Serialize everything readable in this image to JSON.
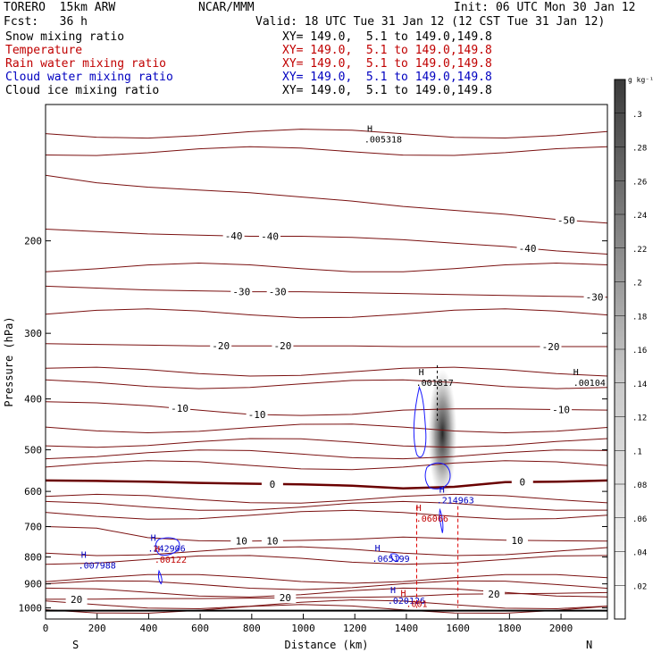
{
  "header": {
    "model": "TORERO  15km ARW",
    "center": "NCAR/MMM",
    "init": "Init: 06 UTC Mon 30 Jan 12",
    "fcst": "Fcst:   36 h",
    "valid": "Valid: 18 UTC Tue 31 Jan 12 (12 CST Tue 31 Jan 12)"
  },
  "fields": [
    {
      "name": "Snow mixing ratio",
      "xy": "XY= 149.0,  5.1 to 149.0,149.8",
      "color": "#000000"
    },
    {
      "name": "Temperature",
      "xy": "XY= 149.0,  5.1 to 149.0,149.8",
      "color": "#c00000"
    },
    {
      "name": "Rain water mixing ratio",
      "xy": "XY= 149.0,  5.1 to 149.0,149.8",
      "color": "#c00000"
    },
    {
      "name": "Cloud water mixing ratio",
      "xy": "XY= 149.0,  5.1 to 149.0,149.8",
      "color": "#0000c0"
    },
    {
      "name": "Cloud ice mixing ratio",
      "xy": "XY= 149.0,  5.1 to 149.0,149.8",
      "color": "#000000"
    }
  ],
  "chart_data": {
    "type": "contour cross-section",
    "xlabel": "Distance (km)",
    "ylabel": "Pressure (hPa)",
    "x_ticks": [
      0,
      200,
      400,
      600,
      800,
      1000,
      1200,
      1400,
      1600,
      1800,
      2000
    ],
    "xlim": [
      0,
      2180
    ],
    "y_ticks": [
      200,
      300,
      400,
      500,
      600,
      700,
      800,
      900,
      1000
    ],
    "ylim": [
      1050,
      110
    ],
    "y_scale": "log",
    "endpoints": {
      "left": "S",
      "right": "N"
    },
    "colorbar": {
      "unit": "g kg⁻¹",
      "ticks": [
        ".02",
        ".04",
        ".06",
        ".08",
        ".1",
        ".12",
        ".14",
        ".16",
        ".18",
        ".2",
        ".22",
        ".24",
        ".26",
        ".28",
        ".3"
      ],
      "range": [
        0,
        0.32
      ]
    },
    "temperature_contours": [
      {
        "value": -50,
        "p": [
          150,
          155,
          158,
          160,
          162,
          165,
          168,
          172,
          175,
          178,
          182,
          185
        ],
        "labels": [
          {
            "text": "-50",
            "x": 2020
          }
        ]
      },
      {
        "value": -40,
        "p": [
          190,
          192,
          194,
          195,
          196,
          196,
          197,
          199,
          202,
          205,
          209,
          212
        ],
        "labels": [
          {
            "text": "-40",
            "x": 730
          },
          {
            "text": "-40",
            "x": 870
          },
          {
            "text": "-40",
            "x": 1870
          }
        ]
      },
      {
        "value": -30,
        "p": [
          244,
          246,
          248,
          249,
          250,
          250,
          251,
          252,
          253,
          254,
          255,
          256
        ],
        "labels": [
          {
            "text": "-30",
            "x": 760
          },
          {
            "text": "-30",
            "x": 900
          },
          {
            "text": "-30",
            "x": 2130
          }
        ]
      },
      {
        "value": -20,
        "p": [
          314,
          315,
          316,
          317,
          317,
          317,
          317,
          318,
          318,
          318,
          318,
          318
        ],
        "labels": [
          {
            "text": "-20",
            "x": 680
          },
          {
            "text": "-20",
            "x": 920
          },
          {
            "text": "-20",
            "x": 1960
          }
        ]
      },
      {
        "value": -10,
        "p": [
          405,
          407,
          412,
          420,
          428,
          430,
          428,
          420,
          418,
          418,
          419,
          420
        ],
        "labels": [
          {
            "text": "-10",
            "x": 520
          },
          {
            "text": "-10",
            "x": 820
          },
          {
            "text": "-10",
            "x": 2000
          }
        ]
      },
      {
        "value": 0,
        "p": [
          572,
          573,
          575,
          578,
          580,
          582,
          585,
          592,
          588,
          576,
          575,
          572
        ],
        "labels": [
          {
            "text": "0",
            "x": 880
          },
          {
            "text": "0",
            "x": 1850
          }
        ],
        "bold": true
      },
      {
        "value": 10,
        "p": [
          700,
          705,
          735,
          745,
          746,
          744,
          740,
          733,
          738,
          743,
          745,
          746
        ],
        "labels": [
          {
            "text": "10",
            "x": 760
          },
          {
            "text": "10",
            "x": 880
          },
          {
            "text": "10",
            "x": 1830
          }
        ]
      },
      {
        "value": 20,
        "p": [
          963,
          962,
          960,
          960,
          958,
          956,
          955,
          952,
          942,
          940,
          938,
          935
        ],
        "labels": [
          {
            "text": "20",
            "x": 120
          },
          {
            "text": "20",
            "x": 930
          },
          {
            "text": "20",
            "x": 1740
          }
        ]
      }
    ],
    "extra_isotherm_p": [
      125,
      135,
      225,
      275,
      355,
      375,
      455,
      485,
      510,
      535,
      620,
      640,
      665,
      780,
      810,
      880,
      905,
      935,
      985,
      1005
    ],
    "snow_mixing_ratio": {
      "x": 1540,
      "p_top": 340,
      "p_bottom": 600,
      "max": 0.3
    },
    "cloud_water_contour_value": ".001",
    "rain_water_contour_value": ".001",
    "maxima": [
      {
        "text": ".001817",
        "x": 1510,
        "p": 372,
        "color": "#000000"
      },
      {
        "text": ".00104",
        "x": 2110,
        "p": 372,
        "color": "#000000"
      },
      {
        "text": ".005318",
        "x": 1310,
        "p": 128,
        "color": "#000000"
      },
      {
        "text": ".214963",
        "x": 1590,
        "p": 623,
        "color": "#0000c0"
      },
      {
        "text": ".06066",
        "x": 1500,
        "p": 674,
        "color": "#c00000"
      },
      {
        "text": ".242906",
        "x": 470,
        "p": 769,
        "color": "#0000c0"
      },
      {
        "text": ".00122",
        "x": 485,
        "p": 807,
        "color": "#c00000"
      },
      {
        "text": ".007988",
        "x": 200,
        "p": 828,
        "color": "#0000c0"
      },
      {
        "text": ".065199",
        "x": 1340,
        "p": 805,
        "color": "#0000c0"
      },
      {
        "text": ".020126",
        "x": 1400,
        "p": 968,
        "color": "#0000c0"
      },
      {
        "text": ".001",
        "x": 1440,
        "p": 980,
        "color": "#c00000"
      }
    ]
  }
}
